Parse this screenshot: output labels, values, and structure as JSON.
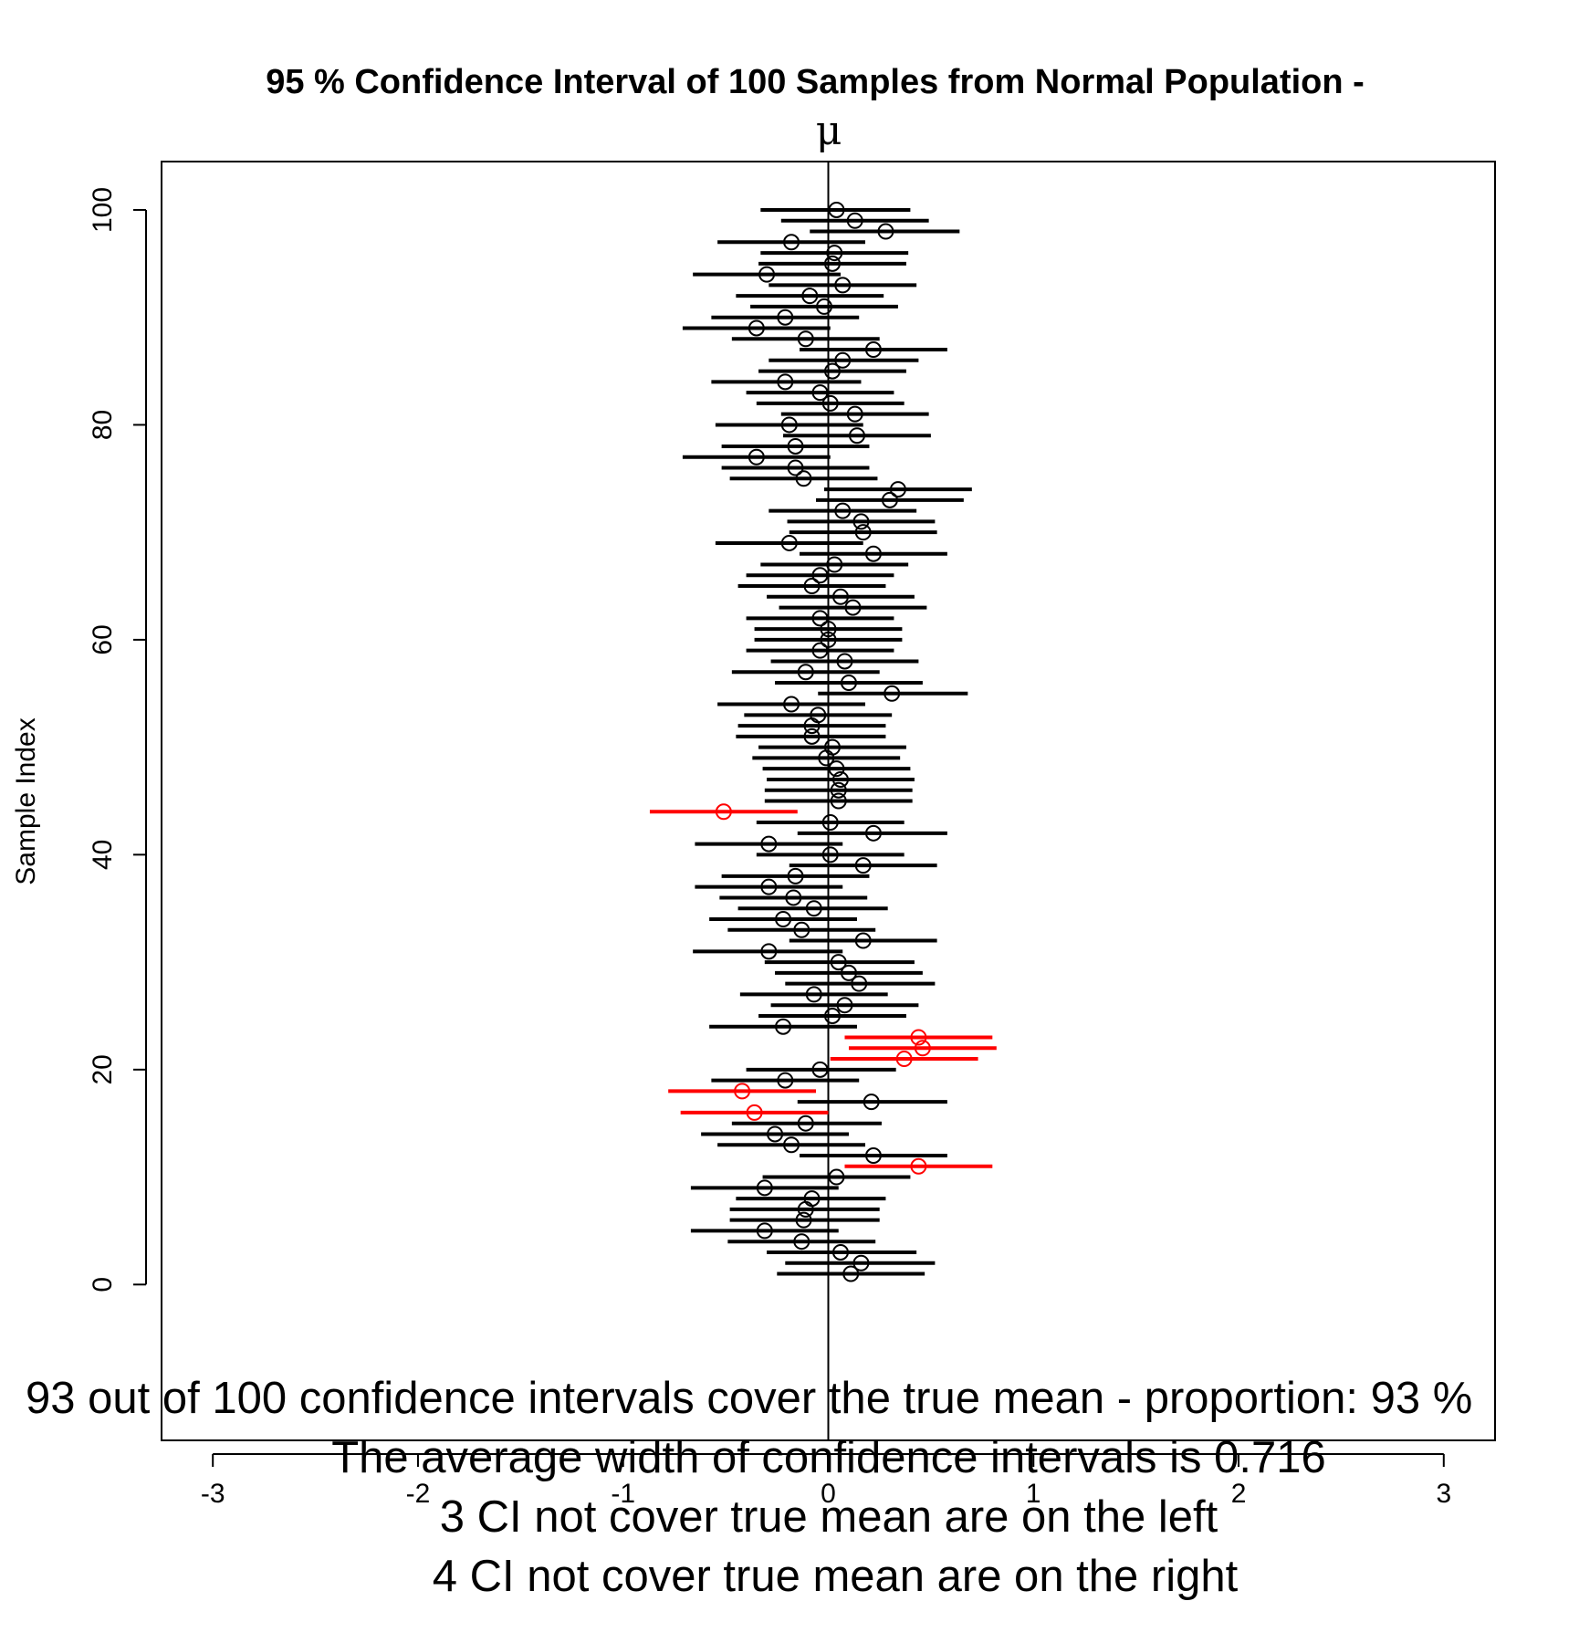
{
  "chart_data": {
    "type": "scatter",
    "title": "95 % Confidence Interval of 100  Samples from Normal Population -",
    "subtitle": "μ",
    "ylabel": "Sample Index",
    "xlabel": "",
    "xlim": [
      -3.25,
      3.25
    ],
    "ylim": [
      -14.5,
      104.5
    ],
    "xticks": [
      -3,
      -2,
      -1,
      0,
      1,
      2,
      3
    ],
    "xtick_labels": [
      "-3",
      "-2",
      "-1",
      "0",
      "1",
      "2",
      "3"
    ],
    "yticks": [
      0,
      20,
      40,
      60,
      80,
      100
    ],
    "ytick_labels": [
      "0",
      "20",
      "40",
      "60",
      "80",
      "100"
    ],
    "reference_line_x": 0,
    "grid": false,
    "colors": {
      "covers": "#000000",
      "misses": "#ff0000"
    },
    "intervals": [
      {
        "i": 1,
        "lo": -0.25,
        "mean": 0.11,
        "hi": 0.47,
        "covers": true
      },
      {
        "i": 2,
        "lo": -0.21,
        "mean": 0.16,
        "hi": 0.52,
        "covers": true
      },
      {
        "i": 3,
        "lo": -0.3,
        "mean": 0.06,
        "hi": 0.43,
        "covers": true
      },
      {
        "i": 4,
        "lo": -0.49,
        "mean": -0.13,
        "hi": 0.23,
        "covers": true
      },
      {
        "i": 5,
        "lo": -0.67,
        "mean": -0.31,
        "hi": 0.05,
        "covers": true
      },
      {
        "i": 6,
        "lo": -0.48,
        "mean": -0.12,
        "hi": 0.25,
        "covers": true
      },
      {
        "i": 7,
        "lo": -0.48,
        "mean": -0.11,
        "hi": 0.25,
        "covers": true
      },
      {
        "i": 8,
        "lo": -0.45,
        "mean": -0.08,
        "hi": 0.28,
        "covers": true
      },
      {
        "i": 9,
        "lo": -0.67,
        "mean": -0.31,
        "hi": 0.05,
        "covers": true
      },
      {
        "i": 10,
        "lo": -0.32,
        "mean": 0.04,
        "hi": 0.4,
        "covers": true
      },
      {
        "i": 11,
        "lo": 0.08,
        "mean": 0.44,
        "hi": 0.8,
        "covers": false
      },
      {
        "i": 12,
        "lo": -0.14,
        "mean": 0.22,
        "hi": 0.58,
        "covers": true
      },
      {
        "i": 13,
        "lo": -0.54,
        "mean": -0.18,
        "hi": 0.18,
        "covers": true
      },
      {
        "i": 14,
        "lo": -0.62,
        "mean": -0.26,
        "hi": 0.1,
        "covers": true
      },
      {
        "i": 15,
        "lo": -0.47,
        "mean": -0.11,
        "hi": 0.26,
        "covers": true
      },
      {
        "i": 16,
        "lo": -0.72,
        "mean": -0.36,
        "hi": 0.0,
        "covers": false
      },
      {
        "i": 17,
        "lo": -0.15,
        "mean": 0.21,
        "hi": 0.58,
        "covers": true
      },
      {
        "i": 18,
        "lo": -0.78,
        "mean": -0.42,
        "hi": -0.06,
        "covers": false
      },
      {
        "i": 19,
        "lo": -0.57,
        "mean": -0.21,
        "hi": 0.15,
        "covers": true
      },
      {
        "i": 20,
        "lo": -0.4,
        "mean": -0.04,
        "hi": 0.33,
        "covers": true
      },
      {
        "i": 21,
        "lo": 0.01,
        "mean": 0.37,
        "hi": 0.73,
        "covers": false
      },
      {
        "i": 22,
        "lo": 0.1,
        "mean": 0.46,
        "hi": 0.82,
        "covers": false
      },
      {
        "i": 23,
        "lo": 0.08,
        "mean": 0.44,
        "hi": 0.8,
        "covers": false
      },
      {
        "i": 24,
        "lo": -0.58,
        "mean": -0.22,
        "hi": 0.14,
        "covers": true
      },
      {
        "i": 25,
        "lo": -0.34,
        "mean": 0.02,
        "hi": 0.38,
        "covers": true
      },
      {
        "i": 26,
        "lo": -0.28,
        "mean": 0.08,
        "hi": 0.44,
        "covers": true
      },
      {
        "i": 27,
        "lo": -0.43,
        "mean": -0.07,
        "hi": 0.29,
        "covers": true
      },
      {
        "i": 28,
        "lo": -0.21,
        "mean": 0.15,
        "hi": 0.52,
        "covers": true
      },
      {
        "i": 29,
        "lo": -0.26,
        "mean": 0.1,
        "hi": 0.46,
        "covers": true
      },
      {
        "i": 30,
        "lo": -0.31,
        "mean": 0.05,
        "hi": 0.42,
        "covers": true
      },
      {
        "i": 31,
        "lo": -0.66,
        "mean": -0.29,
        "hi": 0.07,
        "covers": true
      },
      {
        "i": 32,
        "lo": -0.19,
        "mean": 0.17,
        "hi": 0.53,
        "covers": true
      },
      {
        "i": 33,
        "lo": -0.49,
        "mean": -0.13,
        "hi": 0.23,
        "covers": true
      },
      {
        "i": 34,
        "lo": -0.58,
        "mean": -0.22,
        "hi": 0.14,
        "covers": true
      },
      {
        "i": 35,
        "lo": -0.44,
        "mean": -0.07,
        "hi": 0.29,
        "covers": true
      },
      {
        "i": 36,
        "lo": -0.53,
        "mean": -0.17,
        "hi": 0.19,
        "covers": true
      },
      {
        "i": 37,
        "lo": -0.65,
        "mean": -0.29,
        "hi": 0.07,
        "covers": true
      },
      {
        "i": 38,
        "lo": -0.52,
        "mean": -0.16,
        "hi": 0.2,
        "covers": true
      },
      {
        "i": 39,
        "lo": -0.19,
        "mean": 0.17,
        "hi": 0.53,
        "covers": true
      },
      {
        "i": 40,
        "lo": -0.35,
        "mean": 0.01,
        "hi": 0.37,
        "covers": true
      },
      {
        "i": 41,
        "lo": -0.65,
        "mean": -0.29,
        "hi": 0.07,
        "covers": true
      },
      {
        "i": 42,
        "lo": -0.15,
        "mean": 0.22,
        "hi": 0.58,
        "covers": true
      },
      {
        "i": 43,
        "lo": -0.35,
        "mean": 0.01,
        "hi": 0.37,
        "covers": true
      },
      {
        "i": 44,
        "lo": -0.87,
        "mean": -0.51,
        "hi": -0.15,
        "covers": false
      },
      {
        "i": 45,
        "lo": -0.31,
        "mean": 0.05,
        "hi": 0.41,
        "covers": true
      },
      {
        "i": 46,
        "lo": -0.31,
        "mean": 0.05,
        "hi": 0.41,
        "covers": true
      },
      {
        "i": 47,
        "lo": -0.3,
        "mean": 0.06,
        "hi": 0.42,
        "covers": true
      },
      {
        "i": 48,
        "lo": -0.32,
        "mean": 0.04,
        "hi": 0.4,
        "covers": true
      },
      {
        "i": 49,
        "lo": -0.37,
        "mean": -0.01,
        "hi": 0.35,
        "covers": true
      },
      {
        "i": 50,
        "lo": -0.34,
        "mean": 0.02,
        "hi": 0.38,
        "covers": true
      },
      {
        "i": 51,
        "lo": -0.45,
        "mean": -0.08,
        "hi": 0.28,
        "covers": true
      },
      {
        "i": 52,
        "lo": -0.44,
        "mean": -0.08,
        "hi": 0.28,
        "covers": true
      },
      {
        "i": 53,
        "lo": -0.41,
        "mean": -0.05,
        "hi": 0.31,
        "covers": true
      },
      {
        "i": 54,
        "lo": -0.54,
        "mean": -0.18,
        "hi": 0.18,
        "covers": true
      },
      {
        "i": 55,
        "lo": -0.05,
        "mean": 0.31,
        "hi": 0.68,
        "covers": true
      },
      {
        "i": 56,
        "lo": -0.26,
        "mean": 0.1,
        "hi": 0.46,
        "covers": true
      },
      {
        "i": 57,
        "lo": -0.47,
        "mean": -0.11,
        "hi": 0.25,
        "covers": true
      },
      {
        "i": 58,
        "lo": -0.28,
        "mean": 0.08,
        "hi": 0.44,
        "covers": true
      },
      {
        "i": 59,
        "lo": -0.4,
        "mean": -0.04,
        "hi": 0.32,
        "covers": true
      },
      {
        "i": 60,
        "lo": -0.36,
        "mean": 0.0,
        "hi": 0.36,
        "covers": true
      },
      {
        "i": 61,
        "lo": -0.36,
        "mean": 0.0,
        "hi": 0.36,
        "covers": true
      },
      {
        "i": 62,
        "lo": -0.4,
        "mean": -0.04,
        "hi": 0.32,
        "covers": true
      },
      {
        "i": 63,
        "lo": -0.24,
        "mean": 0.12,
        "hi": 0.48,
        "covers": true
      },
      {
        "i": 64,
        "lo": -0.3,
        "mean": 0.06,
        "hi": 0.42,
        "covers": true
      },
      {
        "i": 65,
        "lo": -0.44,
        "mean": -0.08,
        "hi": 0.28,
        "covers": true
      },
      {
        "i": 66,
        "lo": -0.4,
        "mean": -0.04,
        "hi": 0.32,
        "covers": true
      },
      {
        "i": 67,
        "lo": -0.33,
        "mean": 0.03,
        "hi": 0.39,
        "covers": true
      },
      {
        "i": 68,
        "lo": -0.14,
        "mean": 0.22,
        "hi": 0.58,
        "covers": true
      },
      {
        "i": 69,
        "lo": -0.55,
        "mean": -0.19,
        "hi": 0.17,
        "covers": true
      },
      {
        "i": 70,
        "lo": -0.19,
        "mean": 0.17,
        "hi": 0.53,
        "covers": true
      },
      {
        "i": 71,
        "lo": -0.2,
        "mean": 0.16,
        "hi": 0.52,
        "covers": true
      },
      {
        "i": 72,
        "lo": -0.29,
        "mean": 0.07,
        "hi": 0.43,
        "covers": true
      },
      {
        "i": 73,
        "lo": -0.06,
        "mean": 0.3,
        "hi": 0.66,
        "covers": true
      },
      {
        "i": 74,
        "lo": -0.02,
        "mean": 0.34,
        "hi": 0.7,
        "covers": true
      },
      {
        "i": 75,
        "lo": -0.48,
        "mean": -0.12,
        "hi": 0.24,
        "covers": true
      },
      {
        "i": 76,
        "lo": -0.52,
        "mean": -0.16,
        "hi": 0.2,
        "covers": true
      },
      {
        "i": 77,
        "lo": -0.71,
        "mean": -0.35,
        "hi": 0.01,
        "covers": true
      },
      {
        "i": 78,
        "lo": -0.52,
        "mean": -0.16,
        "hi": 0.2,
        "covers": true
      },
      {
        "i": 79,
        "lo": -0.22,
        "mean": 0.14,
        "hi": 0.5,
        "covers": true
      },
      {
        "i": 80,
        "lo": -0.55,
        "mean": -0.19,
        "hi": 0.17,
        "covers": true
      },
      {
        "i": 81,
        "lo": -0.23,
        "mean": 0.13,
        "hi": 0.49,
        "covers": true
      },
      {
        "i": 82,
        "lo": -0.35,
        "mean": 0.01,
        "hi": 0.37,
        "covers": true
      },
      {
        "i": 83,
        "lo": -0.4,
        "mean": -0.04,
        "hi": 0.32,
        "covers": true
      },
      {
        "i": 84,
        "lo": -0.57,
        "mean": -0.21,
        "hi": 0.16,
        "covers": true
      },
      {
        "i": 85,
        "lo": -0.34,
        "mean": 0.02,
        "hi": 0.38,
        "covers": true
      },
      {
        "i": 86,
        "lo": -0.29,
        "mean": 0.07,
        "hi": 0.44,
        "covers": true
      },
      {
        "i": 87,
        "lo": -0.14,
        "mean": 0.22,
        "hi": 0.58,
        "covers": true
      },
      {
        "i": 88,
        "lo": -0.47,
        "mean": -0.11,
        "hi": 0.25,
        "covers": true
      },
      {
        "i": 89,
        "lo": -0.71,
        "mean": -0.35,
        "hi": 0.01,
        "covers": true
      },
      {
        "i": 90,
        "lo": -0.57,
        "mean": -0.21,
        "hi": 0.15,
        "covers": true
      },
      {
        "i": 91,
        "lo": -0.38,
        "mean": -0.02,
        "hi": 0.34,
        "covers": true
      },
      {
        "i": 92,
        "lo": -0.45,
        "mean": -0.09,
        "hi": 0.27,
        "covers": true
      },
      {
        "i": 93,
        "lo": -0.29,
        "mean": 0.07,
        "hi": 0.43,
        "covers": true
      },
      {
        "i": 94,
        "lo": -0.66,
        "mean": -0.3,
        "hi": 0.06,
        "covers": true
      },
      {
        "i": 95,
        "lo": -0.34,
        "mean": 0.02,
        "hi": 0.38,
        "covers": true
      },
      {
        "i": 96,
        "lo": -0.33,
        "mean": 0.03,
        "hi": 0.39,
        "covers": true
      },
      {
        "i": 97,
        "lo": -0.54,
        "mean": -0.18,
        "hi": 0.18,
        "covers": true
      },
      {
        "i": 98,
        "lo": -0.09,
        "mean": 0.28,
        "hi": 0.64,
        "covers": true
      },
      {
        "i": 99,
        "lo": -0.23,
        "mean": 0.13,
        "hi": 0.49,
        "covers": true
      },
      {
        "i": 100,
        "lo": -0.33,
        "mean": 0.04,
        "hi": 0.4,
        "covers": true
      }
    ],
    "annotations": [
      "93 out of 100 confidence intervals cover the true mean - proportion: 93 %",
      "The average width of confidence intervals is 0.716",
      "3 CI not cover true mean are on the left",
      "4 CI not cover true mean are on the right"
    ]
  }
}
